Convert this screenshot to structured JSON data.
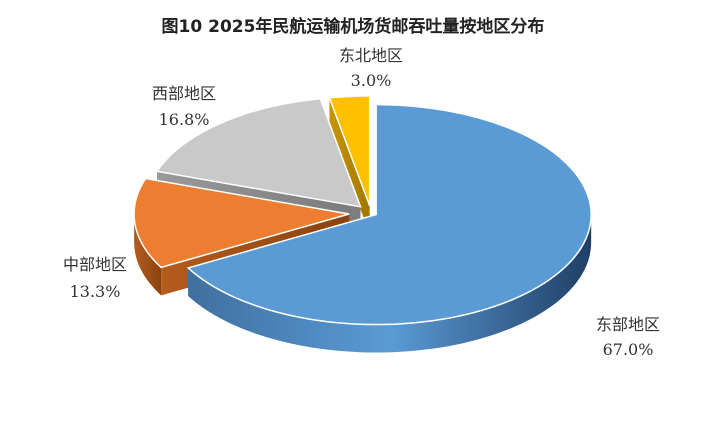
{
  "chart_data": {
    "type": "pie",
    "title": "图10  2025年民航运输机场货邮吞吐量按地区分布",
    "slices": [
      {
        "name": "东部地区",
        "value": 67.0,
        "label": "67.0%",
        "color": "#5B9BD5"
      },
      {
        "name": "中部地区",
        "value": 13.3,
        "label": "13.3%",
        "color": "#ED7D31"
      },
      {
        "name": "西部地区",
        "value": 16.8,
        "label": "16.8%",
        "color": "#C9C9C9"
      },
      {
        "name": "东北地区",
        "value": 3.0,
        "label": "3.0%",
        "color": "#FFC000"
      }
    ],
    "legend": "none"
  }
}
